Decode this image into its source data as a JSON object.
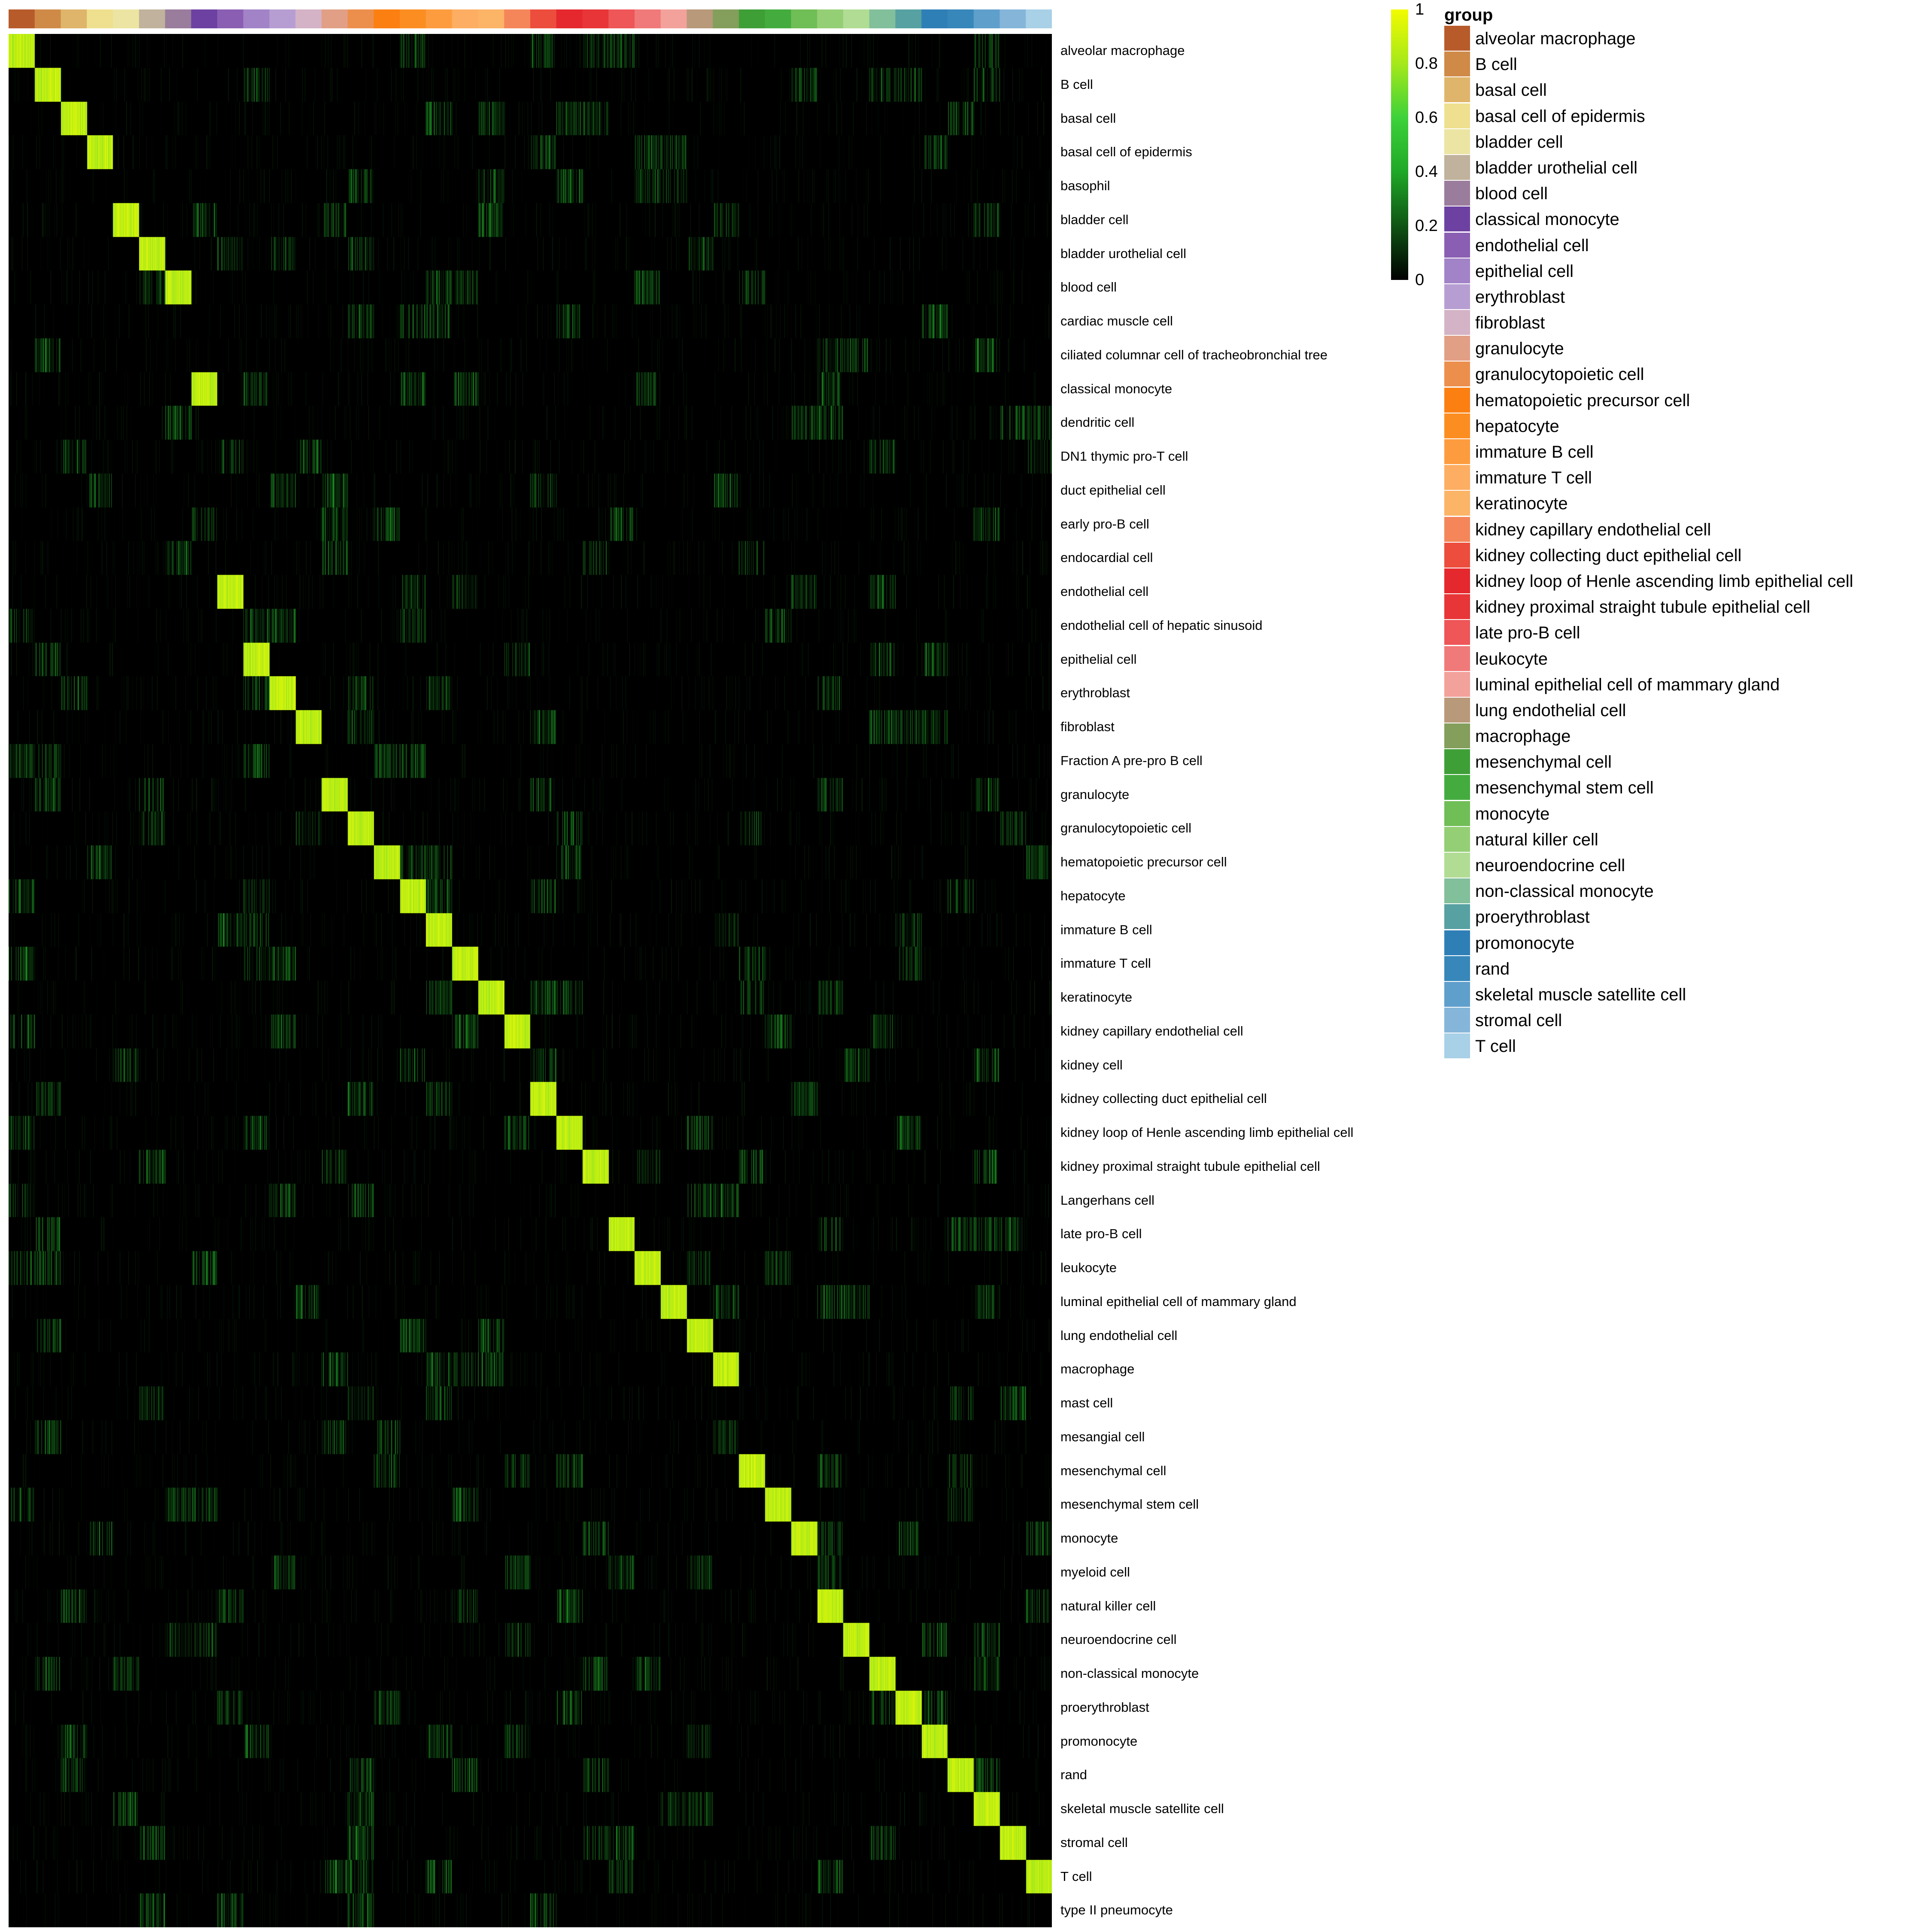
{
  "chart_data": {
    "type": "heatmap",
    "color_scale": {
      "min": 0,
      "max": 1,
      "stops": [
        {
          "value": 0,
          "color": "#000000"
        },
        {
          "value": 0.4,
          "color": "#1fa827"
        },
        {
          "value": 0.6,
          "color": "#3ed23a"
        },
        {
          "value": 0.8,
          "color": "#a6e81a"
        },
        {
          "value": 1,
          "color": "#f2fb00"
        }
      ],
      "ticks": [
        "1",
        "0.8",
        "0.6",
        "0.4",
        "0.2",
        "0"
      ]
    },
    "legend": {
      "title": "group",
      "groups": [
        {
          "name": "alveolar macrophage",
          "color": "#b75b2b"
        },
        {
          "name": "B cell",
          "color": "#cf8a47"
        },
        {
          "name": "basal cell",
          "color": "#dfb56b"
        },
        {
          "name": "basal cell of epidermis",
          "color": "#eee08f"
        },
        {
          "name": "bladder cell",
          "color": "#ece4a2"
        },
        {
          "name": "bladder urothelial cell",
          "color": "#c0b29c"
        },
        {
          "name": "blood cell",
          "color": "#9a7c9c"
        },
        {
          "name": "classical monocyte",
          "color": "#6d41a2"
        },
        {
          "name": "endothelial cell",
          "color": "#8a5fb3"
        },
        {
          "name": "epithelial cell",
          "color": "#a283c7"
        },
        {
          "name": "erythroblast",
          "color": "#b79ed2"
        },
        {
          "name": "fibroblast",
          "color": "#d4b3c6"
        },
        {
          "name": "granulocyte",
          "color": "#e19f85"
        },
        {
          "name": "granulocytopoietic cell",
          "color": "#ec8f4d"
        },
        {
          "name": "hematopoietic precursor cell",
          "color": "#fc7f12"
        },
        {
          "name": "hepatocyte",
          "color": "#fc8d21"
        },
        {
          "name": "immature B cell",
          "color": "#fd9c3e"
        },
        {
          "name": "immature T cell",
          "color": "#fdae62"
        },
        {
          "name": "keratinocyte",
          "color": "#fcb466"
        },
        {
          "name": "kidney capillary endothelial cell",
          "color": "#f4865a"
        },
        {
          "name": "kidney collecting duct epithelial cell",
          "color": "#ed4d3c"
        },
        {
          "name": "kidney loop of Henle ascending limb epithelial cell",
          "color": "#e4282d"
        },
        {
          "name": "kidney proximal straight tubule epithelial cell",
          "color": "#e83537"
        },
        {
          "name": "late pro-B cell",
          "color": "#ee5658"
        },
        {
          "name": "leukocyte",
          "color": "#f07979"
        },
        {
          "name": "luminal epithelial cell of mammary gland",
          "color": "#f3a19b"
        },
        {
          "name": "lung endothelial cell",
          "color": "#b8997a"
        },
        {
          "name": "macrophage",
          "color": "#849e5b"
        },
        {
          "name": "mesenchymal cell",
          "color": "#3f9f37"
        },
        {
          "name": "mesenchymal stem cell",
          "color": "#44ac3e"
        },
        {
          "name": "monocyte",
          "color": "#70be56"
        },
        {
          "name": "natural killer cell",
          "color": "#95cf75"
        },
        {
          "name": "neuroendocrine cell",
          "color": "#b1dc94"
        },
        {
          "name": "non-classical monocyte",
          "color": "#82bf9b"
        },
        {
          "name": "proerythroblast",
          "color": "#57a1a2"
        },
        {
          "name": "promonocyte",
          "color": "#2f7fb7"
        },
        {
          "name": "rand",
          "color": "#3787ba"
        },
        {
          "name": "skeletal muscle satellite cell",
          "color": "#5f9fcb"
        },
        {
          "name": "stromal cell",
          "color": "#85b6d9"
        },
        {
          "name": "T cell",
          "color": "#a8d0e6"
        }
      ]
    },
    "rows": [
      {
        "label": "alveolar macrophage",
        "group_index": 0
      },
      {
        "label": "B cell",
        "group_index": 1
      },
      {
        "label": "basal cell",
        "group_index": 2
      },
      {
        "label": "basal cell of epidermis",
        "group_index": 3
      },
      {
        "label": "basophil",
        "group_index": null
      },
      {
        "label": "bladder cell",
        "group_index": 4
      },
      {
        "label": "bladder urothelial cell",
        "group_index": 5
      },
      {
        "label": "blood cell",
        "group_index": 6
      },
      {
        "label": "cardiac muscle cell",
        "group_index": null
      },
      {
        "label": "ciliated columnar cell of tracheobronchial tree",
        "group_index": null
      },
      {
        "label": "classical monocyte",
        "group_index": 7
      },
      {
        "label": "dendritic cell",
        "group_index": null
      },
      {
        "label": "DN1 thymic pro-T cell",
        "group_index": null
      },
      {
        "label": "duct epithelial cell",
        "group_index": null
      },
      {
        "label": "early pro-B cell",
        "group_index": null
      },
      {
        "label": "endocardial cell",
        "group_index": null
      },
      {
        "label": "endothelial cell",
        "group_index": 8
      },
      {
        "label": "endothelial cell of hepatic sinusoid",
        "group_index": null
      },
      {
        "label": "epithelial cell",
        "group_index": 9
      },
      {
        "label": "erythroblast",
        "group_index": 10
      },
      {
        "label": "fibroblast",
        "group_index": 11
      },
      {
        "label": "Fraction A pre-pro B cell",
        "group_index": null
      },
      {
        "label": "granulocyte",
        "group_index": 12
      },
      {
        "label": "granulocytopoietic cell",
        "group_index": 13
      },
      {
        "label": "hematopoietic precursor cell",
        "group_index": 14
      },
      {
        "label": "hepatocyte",
        "group_index": 15
      },
      {
        "label": "immature B cell",
        "group_index": 16
      },
      {
        "label": "immature T cell",
        "group_index": 17
      },
      {
        "label": "keratinocyte",
        "group_index": 18
      },
      {
        "label": "kidney capillary endothelial cell",
        "group_index": 19
      },
      {
        "label": "kidney cell",
        "group_index": null
      },
      {
        "label": "kidney collecting duct epithelial cell",
        "group_index": 20
      },
      {
        "label": "kidney loop of Henle ascending limb epithelial cell",
        "group_index": 21
      },
      {
        "label": "kidney proximal straight tubule epithelial cell",
        "group_index": 22
      },
      {
        "label": "Langerhans cell",
        "group_index": null
      },
      {
        "label": "late pro-B cell",
        "group_index": 23
      },
      {
        "label": "leukocyte",
        "group_index": 24
      },
      {
        "label": "luminal epithelial cell of mammary gland",
        "group_index": 25
      },
      {
        "label": "lung endothelial cell",
        "group_index": 26
      },
      {
        "label": "macrophage",
        "group_index": 27
      },
      {
        "label": "mast cell",
        "group_index": null
      },
      {
        "label": "mesangial cell",
        "group_index": null
      },
      {
        "label": "mesenchymal cell",
        "group_index": 28
      },
      {
        "label": "mesenchymal stem cell",
        "group_index": 29
      },
      {
        "label": "monocyte",
        "group_index": 30
      },
      {
        "label": "myeloid cell",
        "group_index": null
      },
      {
        "label": "natural killer cell",
        "group_index": 31
      },
      {
        "label": "neuroendocrine cell",
        "group_index": 32
      },
      {
        "label": "non-classical monocyte",
        "group_index": 33
      },
      {
        "label": "proerythroblast",
        "group_index": 34
      },
      {
        "label": "promonocyte",
        "group_index": 35
      },
      {
        "label": "rand",
        "group_index": 36
      },
      {
        "label": "skeletal muscle satellite cell",
        "group_index": 37
      },
      {
        "label": "stromal cell",
        "group_index": 38
      },
      {
        "label": "T cell",
        "group_index": 39
      },
      {
        "label": "type II pneumocyte",
        "group_index": null
      }
    ],
    "diagonal_value": 0.95,
    "background_value": 0.0,
    "off_diagonal_typical_max": 0.35
  }
}
